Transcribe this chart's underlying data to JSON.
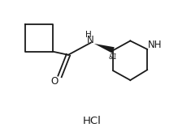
{
  "background_color": "#ffffff",
  "line_color": "#1a1a1a",
  "line_width": 1.3,
  "figsize": [
    2.35,
    1.68
  ],
  "dpi": 100,
  "hcl_text": "HCl",
  "nh_amide_text": "H\nN",
  "o_text": "O",
  "nh_pip_text": "NH",
  "stereo_text": "&1",
  "xlim": [
    0,
    10
  ],
  "ylim": [
    0,
    7.2
  ]
}
